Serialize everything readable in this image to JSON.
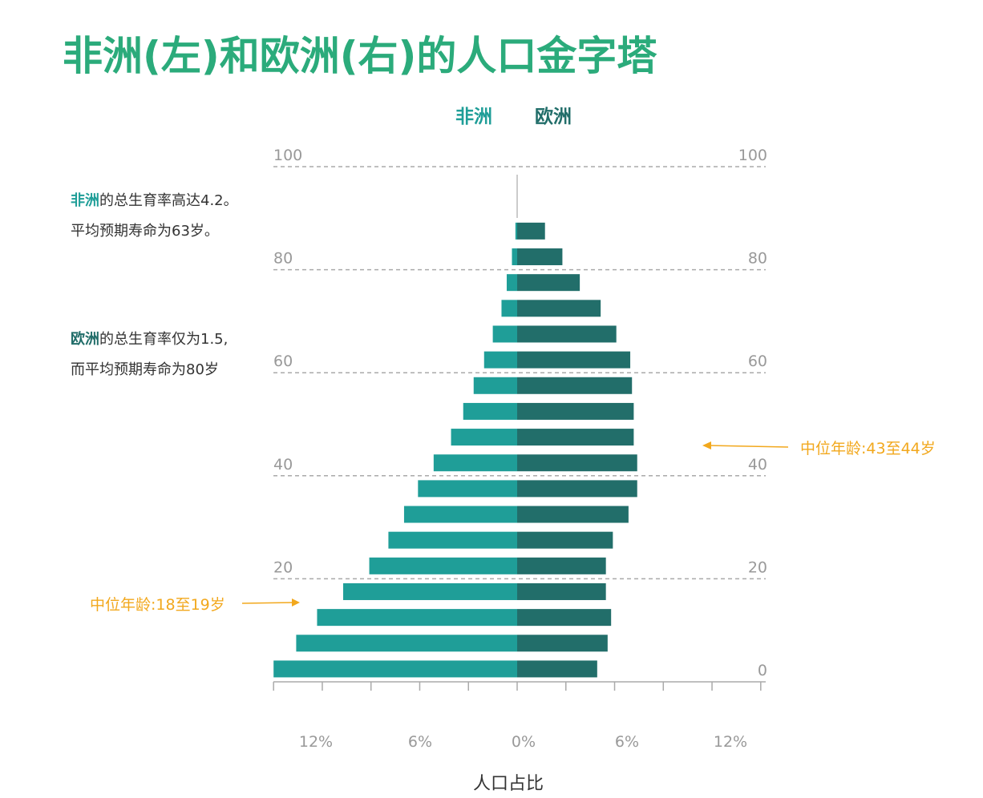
{
  "title": "非洲(左)和欧洲(右)的人口金字塔",
  "legend": {
    "africa": "非洲",
    "europe": "欧洲"
  },
  "notes": {
    "africa": {
      "highlight": "非洲",
      "line1": "的总生育率高达4.2。",
      "line2": "平均预期寿命为63岁。"
    },
    "europe": {
      "highlight": "欧洲",
      "line1": "的总生育率仅为1.5,",
      "line2": "而平均预期寿命为80岁"
    }
  },
  "median": {
    "africa": "中位年龄:18至19岁",
    "europe": "中位年龄:43至44岁"
  },
  "colors": {
    "africa": "#1f9e98",
    "europe": "#226e6a",
    "annotation": "#f2a81d",
    "title": "#2bab7b",
    "axis": "#999999"
  },
  "chart_data": {
    "type": "bar",
    "orientation": "horizontal-butterfly",
    "title": "非洲(左)和欧洲(右)的人口金字塔",
    "xlabel": "人口占比",
    "ylabel": "",
    "age_ticks": [
      "0",
      "20",
      "40",
      "60",
      "80",
      "100"
    ],
    "age_tick_values": [
      0,
      20,
      40,
      60,
      80,
      100
    ],
    "x_ticks": [
      "12%",
      "6%",
      "0%",
      "6%",
      "12%"
    ],
    "xlim": [
      -14,
      14
    ],
    "ylim": [
      0,
      100
    ],
    "categories": [
      "0-4",
      "5-9",
      "10-14",
      "15-19",
      "20-24",
      "25-29",
      "30-34",
      "35-39",
      "40-44",
      "45-49",
      "50-54",
      "55-59",
      "60-64",
      "65-69",
      "70-74",
      "75-79",
      "80-84",
      "85-89",
      "90-94",
      "95-99"
    ],
    "series": [
      {
        "name": "非洲",
        "side": "left",
        "values": [
          14.0,
          12.7,
          11.5,
          10.0,
          8.5,
          7.4,
          6.5,
          5.7,
          4.8,
          3.8,
          3.1,
          2.5,
          1.9,
          1.4,
          0.9,
          0.6,
          0.3,
          0.1,
          0.0,
          0.0
        ]
      },
      {
        "name": "欧洲",
        "side": "right",
        "values": [
          4.6,
          5.2,
          5.4,
          5.1,
          5.1,
          5.5,
          6.4,
          6.9,
          6.9,
          6.7,
          6.7,
          6.6,
          6.5,
          5.7,
          4.8,
          3.6,
          2.6,
          1.6,
          0.0,
          0.0
        ]
      }
    ],
    "grid": true,
    "legend_position": "top-center"
  }
}
